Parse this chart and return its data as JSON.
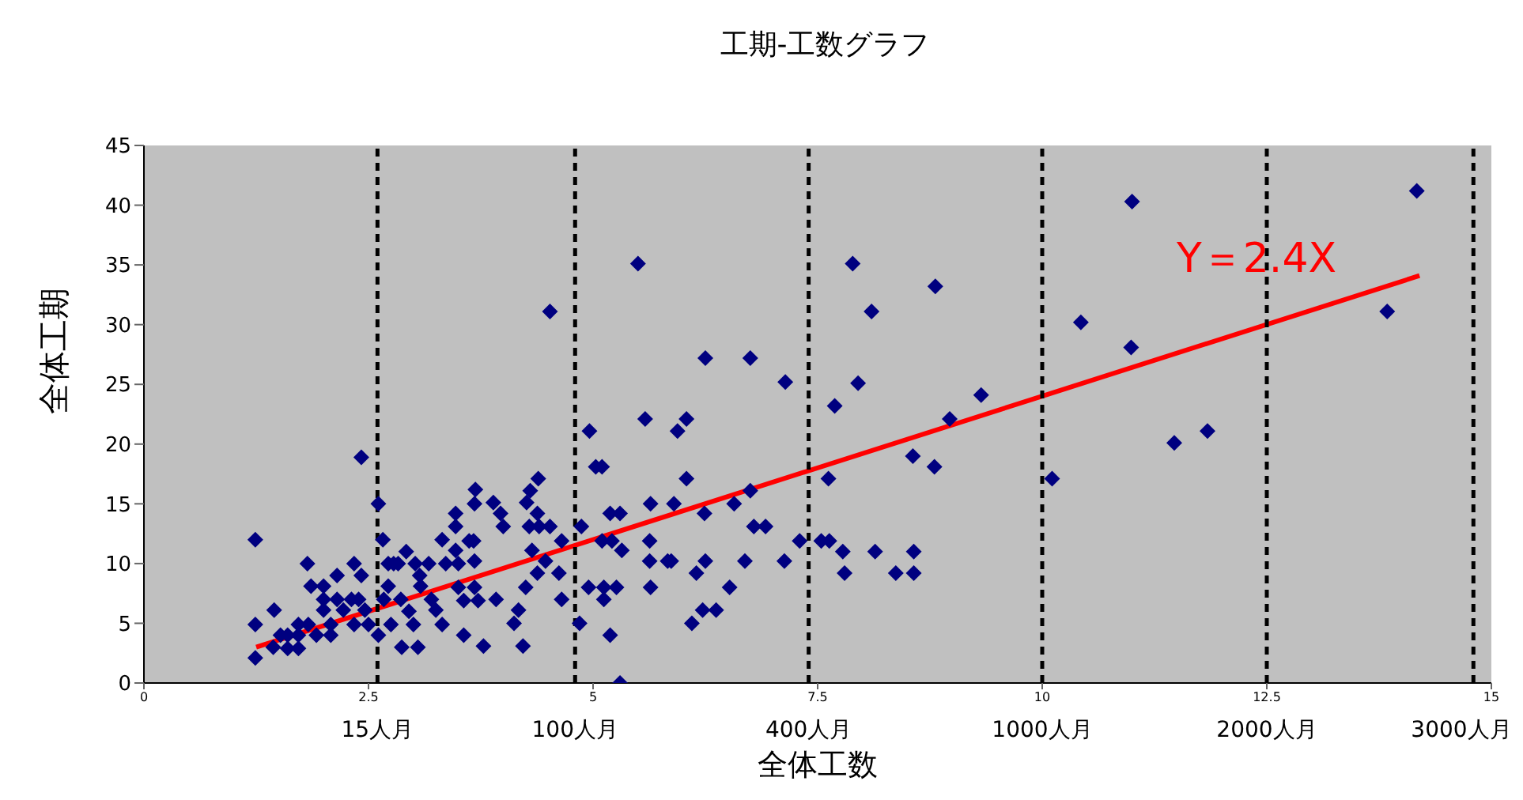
{
  "chart_data": {
    "type": "scatter",
    "title": "工期-工数グラフ",
    "xlabel": "全体工数",
    "ylabel": "全体工期",
    "xlim": [
      0,
      15
    ],
    "xticks": [
      0,
      2.5,
      5,
      7.5,
      10,
      12.5,
      15
    ],
    "ylim": [
      0,
      45
    ],
    "yticks": [
      0,
      5,
      10,
      15,
      20,
      25,
      30,
      35,
      40,
      45
    ],
    "grid": false,
    "series": [
      {
        "marker": "diamond",
        "color": "#000080",
        "x": [
          1.24,
          1.24,
          1.24,
          1.45,
          1.44,
          1.52,
          1.6,
          1.6,
          1.72,
          1.72,
          1.72,
          1.82,
          1.83,
          1.86,
          1.92,
          2.0,
          2.0,
          2.0,
          2.08,
          2.08,
          2.15,
          2.15,
          2.22,
          2.31,
          2.34,
          2.34,
          2.39,
          2.42,
          2.42,
          2.46,
          2.5,
          2.61,
          2.61,
          2.66,
          2.67,
          2.72,
          2.72,
          2.75,
          2.78,
          2.83,
          2.86,
          2.87,
          2.92,
          2.95,
          3.0,
          3.02,
          3.05,
          3.07,
          3.08,
          3.17,
          3.2,
          3.25,
          3.32,
          3.32,
          3.36,
          3.47,
          3.47,
          3.47,
          3.5,
          3.5,
          3.56,
          3.56,
          3.62,
          3.67,
          3.68,
          3.68,
          3.69,
          3.72,
          3.68,
          3.78,
          3.89,
          3.92,
          3.97,
          4.0,
          4.12,
          4.17,
          4.22,
          4.25,
          4.26,
          4.29,
          4.32,
          4.3,
          4.38,
          4.39,
          4.4,
          4.38,
          4.47,
          4.52,
          4.52,
          4.62,
          4.65,
          4.65,
          4.85,
          4.87,
          4.96,
          4.95,
          5.03,
          5.1,
          5.1,
          5.12,
          5.12,
          5.19,
          5.19,
          5.21,
          5.26,
          5.3,
          5.32,
          5.3,
          5.5,
          5.58,
          5.64,
          5.63,
          5.63,
          5.64,
          5.83,
          5.87,
          5.9,
          5.94,
          6.04,
          6.04,
          6.1,
          6.15,
          6.22,
          6.24,
          6.25,
          6.25,
          6.37,
          6.52,
          6.57,
          6.69,
          6.75,
          6.75,
          6.79,
          6.92,
          7.13,
          7.14,
          7.3,
          7.54,
          7.63,
          7.62,
          7.69,
          7.78,
          7.8,
          7.89,
          7.95,
          8.1,
          8.14,
          8.37,
          8.56,
          8.57,
          8.57,
          8.8,
          8.81,
          8.97,
          9.32,
          10.11,
          10.43,
          10.99,
          11.0,
          11.47,
          11.84,
          13.84,
          14.17
        ],
        "values": [
          12.0,
          4.9,
          2.1,
          6.1,
          3.0,
          4.0,
          2.9,
          4.0,
          4.9,
          2.9,
          4.0,
          10.0,
          4.9,
          8.1,
          4.0,
          8.1,
          7.0,
          6.1,
          4.0,
          4.9,
          9.0,
          7.0,
          6.1,
          7.0,
          10.0,
          4.9,
          7.0,
          18.9,
          9.0,
          6.1,
          4.9,
          15.0,
          4.0,
          12.0,
          7.0,
          10.0,
          8.1,
          4.9,
          10.0,
          10.0,
          7.0,
          3.0,
          11.0,
          6.0,
          4.9,
          10.0,
          3.0,
          9.0,
          8.1,
          10.0,
          7.0,
          6.1,
          12.0,
          4.9,
          10.0,
          14.2,
          13.1,
          11.1,
          10.0,
          8.0,
          4.0,
          6.9,
          11.9,
          11.9,
          15.0,
          10.2,
          16.2,
          6.9,
          8.0,
          3.1,
          15.1,
          7.0,
          14.2,
          13.1,
          5.0,
          6.1,
          3.1,
          8.0,
          15.1,
          13.1,
          11.1,
          16.1,
          14.2,
          17.1,
          13.1,
          9.2,
          10.2,
          31.1,
          13.1,
          9.2,
          11.9,
          7.0,
          5.0,
          13.1,
          21.1,
          8.0,
          18.1,
          18.1,
          11.9,
          7.0,
          8.0,
          14.2,
          4.0,
          11.9,
          8.0,
          14.2,
          11.1,
          0.0,
          35.1,
          22.1,
          15.0,
          11.9,
          10.2,
          8.0,
          10.2,
          10.2,
          15.0,
          21.1,
          22.1,
          17.1,
          5.0,
          9.2,
          6.1,
          14.2,
          27.2,
          10.2,
          6.1,
          8.0,
          15.0,
          10.2,
          27.2,
          16.1,
          13.1,
          13.1,
          10.2,
          25.2,
          11.9,
          11.9,
          11.9,
          17.1,
          23.2,
          11.0,
          9.2,
          35.1,
          25.1,
          31.1,
          11.0,
          9.2,
          19.0,
          11.0,
          9.2,
          18.1,
          33.2,
          22.1,
          24.1,
          17.1,
          30.2,
          28.1,
          40.3,
          20.1,
          21.1,
          31.1,
          41.2
        ]
      },
      {
        "type": "line",
        "marker": "none",
        "color": "#ff0000",
        "x": [
          1.25,
          14.2
        ],
        "values": [
          3.0,
          34.1
        ]
      }
    ],
    "ref_lines": [
      {
        "axis": "x",
        "value": 2.6,
        "label": "15人月",
        "color": "#000000",
        "line_style": "dashed"
      },
      {
        "axis": "x",
        "value": 4.8,
        "label": "100人月",
        "color": "#000000",
        "line_style": "dashed"
      },
      {
        "axis": "x",
        "value": 7.4,
        "label": "400人月",
        "color": "#000000",
        "line_style": "dashed"
      },
      {
        "axis": "x",
        "value": 10,
        "label": "1000人月",
        "color": "#000000",
        "line_style": "dashed"
      },
      {
        "axis": "x",
        "value": 12.5,
        "label": "2000人月",
        "color": "#000000",
        "line_style": "dashed"
      },
      {
        "axis": "x",
        "value": 14.8,
        "label": "3000人月",
        "color": "#000000",
        "line_style": "dashed"
      }
    ],
    "annotations": [
      "Y＝2.4X"
    ]
  }
}
